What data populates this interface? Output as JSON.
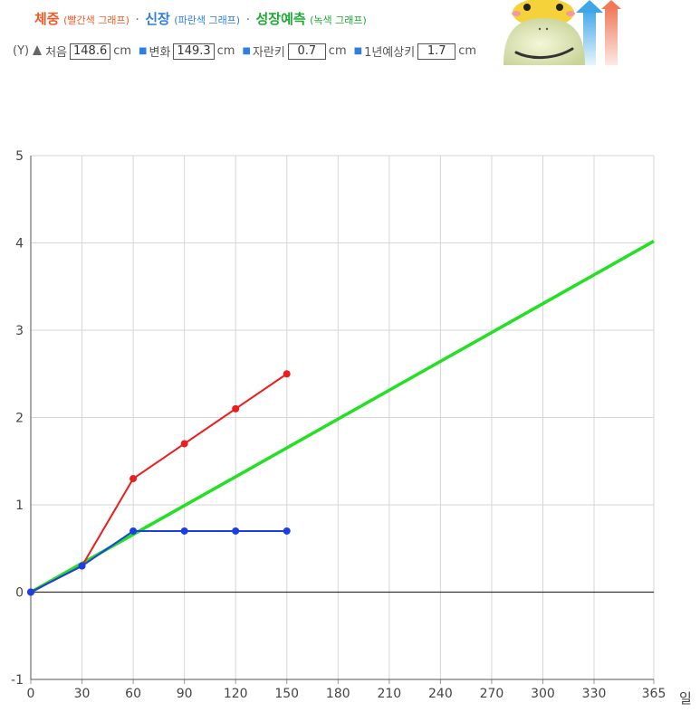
{
  "legend": {
    "weight_label": "체중",
    "weight_note": "(빨간색 그래프)",
    "height_label": "신장",
    "height_note": "(파란색 그래프)",
    "predict_label": "성장예측",
    "predict_note": "(녹색 그래프)",
    "separator": "·"
  },
  "values": {
    "axis_prefix": "(Y)",
    "first_label": "처음",
    "first_value": "148.6",
    "first_unit": "cm",
    "change_label": "변화",
    "change_value": "149.3",
    "change_unit": "cm",
    "grown_label": "자란키",
    "grown_value": "0.7",
    "grown_unit": "cm",
    "year_label": "1년예상키",
    "year_value": "1.7",
    "year_unit": "cm"
  },
  "colors": {
    "weight": "#ee1c1c",
    "height": "#1a3fe6",
    "predict": "#22e022",
    "weight_title": "#f05a28",
    "height_title": "#2f7ee0",
    "predict_title": "#1faa35"
  },
  "chart_data": {
    "type": "line",
    "x_unit_label": "일",
    "xlim": [
      0,
      365
    ],
    "ylim": [
      -1,
      5
    ],
    "x_ticks": [
      "0",
      "30",
      "60",
      "90",
      "120",
      "150",
      "180",
      "210",
      "240",
      "270",
      "300",
      "330",
      "365"
    ],
    "y_ticks": [
      "-1",
      "0",
      "1",
      "2",
      "3",
      "4",
      "5"
    ],
    "grid": true,
    "series": [
      {
        "name": "체중",
        "color": "#ee1c1c",
        "x": [
          0,
          30,
          60,
          90,
          120,
          150
        ],
        "y": [
          0,
          0.3,
          1.3,
          1.7,
          2.1,
          2.5
        ],
        "markers": true
      },
      {
        "name": "신장",
        "color": "#1a3fe6",
        "x": [
          0,
          30,
          60,
          90,
          120,
          150
        ],
        "y": [
          0,
          0.3,
          0.7,
          0.7,
          0.7,
          0.7
        ],
        "markers": true
      },
      {
        "name": "성장예측",
        "color": "#22e022",
        "x": [
          0,
          365
        ],
        "y": [
          0,
          4.02
        ],
        "markers": false
      }
    ]
  }
}
